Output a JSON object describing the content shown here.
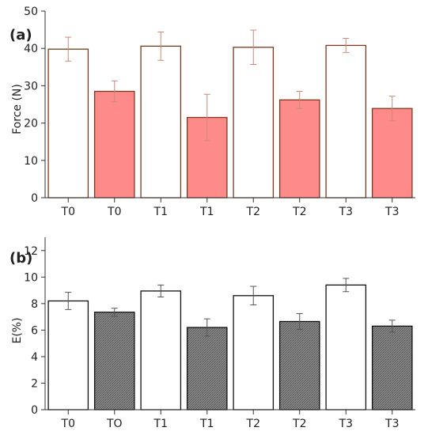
{
  "chart_data": [
    {
      "type": "bar",
      "panel_label": "(a)",
      "ylabel": "Force (N)",
      "ylim": [
        0,
        50
      ],
      "yticks": [
        0,
        10,
        20,
        30,
        40,
        50
      ],
      "categories": [
        "T0",
        "T0",
        "T1",
        "T1",
        "T2",
        "T2",
        "T3",
        "T3"
      ],
      "values": [
        39.8,
        28.5,
        40.6,
        21.5,
        40.3,
        26.2,
        40.8,
        23.9
      ],
      "errors": [
        3.2,
        2.8,
        3.8,
        6.2,
        4.6,
        2.3,
        1.9,
        3.3
      ],
      "fill_colors": [
        "#ffffff",
        "#ff8a8a",
        "#ffffff",
        "#ff8a8a",
        "#ffffff",
        "#ff8a8a",
        "#ffffff",
        "#ff8a8a"
      ],
      "edge_color": "#7a3a1e",
      "error_color": "#c98a78",
      "grid": false
    },
    {
      "type": "bar",
      "panel_label": "(b)",
      "ylabel": "E(%)",
      "ylim": [
        0,
        13
      ],
      "yticks": [
        0,
        2,
        4,
        6,
        8,
        10,
        12
      ],
      "categories": [
        "T0",
        "TO",
        "T1",
        "T1",
        "T2",
        "T2",
        "T3",
        "T3"
      ],
      "values": [
        8.2,
        7.35,
        8.95,
        6.2,
        8.6,
        6.65,
        9.4,
        6.3
      ],
      "errors": [
        0.65,
        0.3,
        0.45,
        0.65,
        0.7,
        0.6,
        0.5,
        0.45
      ],
      "fill_colors": [
        "#ffffff",
        "#7e7e7e",
        "#ffffff",
        "#7e7e7e",
        "#ffffff",
        "#7e7e7e",
        "#ffffff",
        "#7e7e7e"
      ],
      "edge_color": "#111111",
      "error_color": "#555555",
      "grid": false
    }
  ]
}
